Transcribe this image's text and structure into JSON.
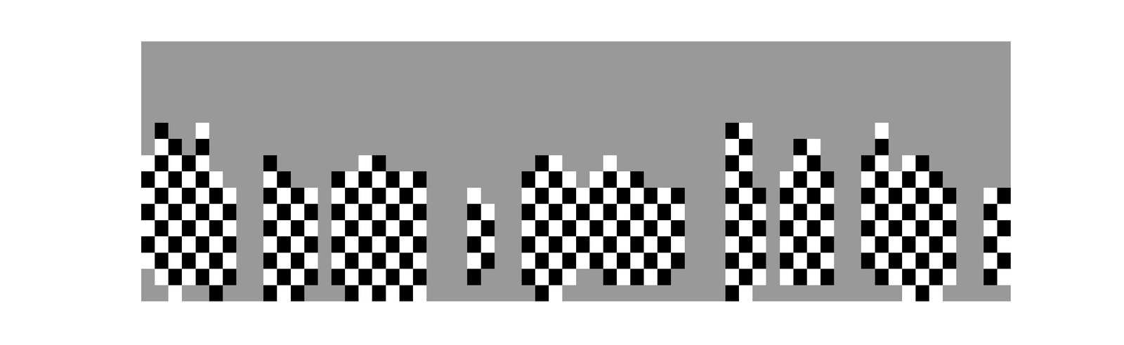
{
  "chart_data": {
    "type": "heatmap",
    "tick_labels": false,
    "grid": false,
    "xlim": [
      -0.5,
      63.5
    ],
    "ylim": [
      -0.5,
      15.5
    ],
    "zlim": [
      -1,
      1
    ],
    "cells": [
      [
        0,
        0,
        1,
        0,
        0,
        -1,
        0,
        0,
        0,
        -1,
        1,
        -1,
        0,
        0,
        0,
        -1,
        1,
        -1,
        1,
        -1,
        1,
        0,
        0,
        0,
        0,
        0,
        0,
        0,
        0,
        -1,
        1,
        0,
        0,
        0,
        0,
        0,
        0,
        0,
        0,
        0,
        0,
        0,
        0,
        -1,
        1,
        0,
        0,
        0,
        0,
        0,
        0,
        0,
        0,
        0,
        0,
        0,
        1,
        -1,
        1,
        0,
        0,
        0,
        0,
        0
      ],
      [
        0,
        1,
        -1,
        1,
        -1,
        1,
        -1,
        0,
        0,
        1,
        -1,
        1,
        -1,
        0,
        -1,
        1,
        -1,
        1,
        -1,
        1,
        -1,
        0,
        0,
        0,
        -1,
        0,
        0,
        0,
        -1,
        1,
        -1,
        1,
        0,
        0,
        -1,
        1,
        -1,
        1,
        -1,
        0,
        0,
        0,
        0,
        1,
        -1,
        1,
        0,
        1,
        -1,
        1,
        -1,
        0,
        0,
        0,
        -1,
        1,
        -1,
        1,
        -1,
        1,
        0,
        0,
        -1,
        1
      ],
      [
        1,
        -1,
        1,
        -1,
        1,
        -1,
        1,
        0,
        0,
        -1,
        1,
        -1,
        1,
        0,
        1,
        -1,
        1,
        -1,
        1,
        -1,
        1,
        0,
        0,
        0,
        1,
        -1,
        0,
        0,
        1,
        -1,
        1,
        -1,
        1,
        -1,
        1,
        -1,
        1,
        -1,
        1,
        -1,
        0,
        0,
        0,
        -1,
        1,
        -1,
        0,
        -1,
        1,
        -1,
        1,
        0,
        0,
        -1,
        1,
        -1,
        1,
        -1,
        1,
        -1,
        0,
        0,
        1,
        -1
      ],
      [
        -1,
        1,
        -1,
        1,
        -1,
        1,
        -1,
        0,
        0,
        1,
        -1,
        1,
        -1,
        0,
        -1,
        1,
        -1,
        1,
        -1,
        1,
        -1,
        0,
        0,
        0,
        -1,
        1,
        0,
        0,
        -1,
        1,
        -1,
        1,
        -1,
        1,
        -1,
        1,
        -1,
        1,
        -1,
        1,
        0,
        0,
        0,
        1,
        -1,
        1,
        0,
        1,
        -1,
        1,
        -1,
        0,
        0,
        1,
        -1,
        1,
        -1,
        1,
        -1,
        1,
        0,
        0,
        -1,
        1
      ],
      [
        1,
        -1,
        1,
        -1,
        1,
        -1,
        1,
        0,
        0,
        -1,
        1,
        -1,
        1,
        0,
        1,
        -1,
        1,
        -1,
        1,
        -1,
        1,
        0,
        0,
        0,
        1,
        -1,
        0,
        0,
        1,
        -1,
        1,
        -1,
        1,
        -1,
        1,
        -1,
        1,
        -1,
        1,
        -1,
        0,
        0,
        0,
        -1,
        1,
        -1,
        0,
        -1,
        1,
        -1,
        1,
        0,
        0,
        -1,
        1,
        -1,
        1,
        -1,
        1,
        -1,
        0,
        0,
        1,
        -1
      ],
      [
        -1,
        1,
        -1,
        1,
        -1,
        1,
        -1,
        0,
        0,
        1,
        -1,
        1,
        -1,
        0,
        -1,
        1,
        -1,
        1,
        -1,
        1,
        -1,
        0,
        0,
        0,
        -1,
        1,
        0,
        0,
        -1,
        1,
        -1,
        1,
        -1,
        1,
        -1,
        1,
        -1,
        1,
        -1,
        1,
        0,
        0,
        0,
        1,
        -1,
        1,
        0,
        1,
        -1,
        1,
        -1,
        0,
        0,
        1,
        -1,
        1,
        -1,
        1,
        -1,
        1,
        0,
        0,
        -1,
        1
      ],
      [
        1,
        -1,
        1,
        -1,
        1,
        -1,
        1,
        0,
        0,
        -1,
        1,
        -1,
        1,
        0,
        1,
        -1,
        1,
        -1,
        1,
        -1,
        1,
        0,
        0,
        0,
        1,
        0,
        0,
        0,
        1,
        -1,
        1,
        -1,
        1,
        -1,
        1,
        -1,
        1,
        -1,
        1,
        -1,
        0,
        0,
        0,
        -1,
        1,
        -1,
        0,
        -1,
        1,
        -1,
        1,
        0,
        0,
        -1,
        1,
        -1,
        1,
        -1,
        1,
        -1,
        0,
        0,
        1,
        -1
      ],
      [
        -1,
        1,
        -1,
        1,
        -1,
        1,
        0,
        0,
        0,
        1,
        -1,
        0,
        0,
        0,
        -1,
        1,
        -1,
        1,
        -1,
        1,
        -1,
        0,
        0,
        0,
        0,
        0,
        0,
        0,
        -1,
        1,
        -1,
        1,
        0,
        1,
        -1,
        1,
        -1,
        0,
        0,
        0,
        0,
        0,
        0,
        1,
        -1,
        0,
        0,
        1,
        -1,
        1,
        -1,
        0,
        0,
        1,
        -1,
        1,
        -1,
        1,
        -1,
        0,
        0,
        0,
        0,
        0
      ],
      [
        1,
        -1,
        1,
        -1,
        1,
        0,
        0,
        0,
        0,
        -1,
        0,
        0,
        0,
        0,
        0,
        0,
        1,
        -1,
        0,
        0,
        0,
        0,
        0,
        0,
        0,
        0,
        0,
        0,
        0,
        -1,
        1,
        0,
        0,
        0,
        1,
        0,
        0,
        0,
        0,
        0,
        0,
        0,
        0,
        -1,
        1,
        0,
        0,
        0,
        1,
        -1,
        0,
        0,
        0,
        -1,
        1,
        0,
        1,
        -1,
        0,
        0,
        0,
        0,
        0,
        0
      ],
      [
        0,
        1,
        -1,
        0,
        -1,
        0,
        0,
        0,
        0,
        0,
        0,
        0,
        0,
        0,
        0,
        0,
        0,
        0,
        0,
        0,
        0,
        0,
        0,
        0,
        0,
        0,
        0,
        0,
        0,
        0,
        0,
        0,
        0,
        0,
        0,
        0,
        0,
        0,
        0,
        0,
        0,
        0,
        0,
        1,
        -1,
        0,
        0,
        0,
        -1,
        1,
        0,
        0,
        0,
        0,
        -1,
        0,
        0,
        0,
        0,
        0,
        0,
        0,
        0,
        0
      ],
      [
        0,
        -1,
        0,
        0,
        1,
        0,
        0,
        0,
        0,
        0,
        0,
        0,
        0,
        0,
        0,
        0,
        0,
        0,
        0,
        0,
        0,
        0,
        0,
        0,
        0,
        0,
        0,
        0,
        0,
        0,
        0,
        0,
        0,
        0,
        0,
        0,
        0,
        0,
        0,
        0,
        0,
        0,
        0,
        -1,
        1,
        0,
        0,
        0,
        0,
        0,
        0,
        0,
        0,
        0,
        1,
        0,
        0,
        0,
        0,
        0,
        0,
        0,
        0,
        0
      ],
      [
        0,
        0,
        0,
        0,
        0,
        0,
        0,
        0,
        0,
        0,
        0,
        0,
        0,
        0,
        0,
        0,
        0,
        0,
        0,
        0,
        0,
        0,
        0,
        0,
        0,
        0,
        0,
        0,
        0,
        0,
        0,
        0,
        0,
        0,
        0,
        0,
        0,
        0,
        0,
        0,
        0,
        0,
        0,
        0,
        0,
        0,
        0,
        0,
        0,
        0,
        0,
        0,
        0,
        0,
        0,
        0,
        0,
        0,
        0,
        0,
        0,
        0,
        0,
        0
      ],
      [
        0,
        0,
        0,
        0,
        0,
        0,
        0,
        0,
        0,
        0,
        0,
        0,
        0,
        0,
        0,
        0,
        0,
        0,
        0,
        0,
        0,
        0,
        0,
        0,
        0,
        0,
        0,
        0,
        0,
        0,
        0,
        0,
        0,
        0,
        0,
        0,
        0,
        0,
        0,
        0,
        0,
        0,
        0,
        0,
        0,
        0,
        0,
        0,
        0,
        0,
        0,
        0,
        0,
        0,
        0,
        0,
        0,
        0,
        0,
        0,
        0,
        0,
        0,
        0
      ],
      [
        0,
        0,
        0,
        0,
        0,
        0,
        0,
        0,
        0,
        0,
        0,
        0,
        0,
        0,
        0,
        0,
        0,
        0,
        0,
        0,
        0,
        0,
        0,
        0,
        0,
        0,
        0,
        0,
        0,
        0,
        0,
        0,
        0,
        0,
        0,
        0,
        0,
        0,
        0,
        0,
        0,
        0,
        0,
        0,
        0,
        0,
        0,
        0,
        0,
        0,
        0,
        0,
        0,
        0,
        0,
        0,
        0,
        0,
        0,
        0,
        0,
        0,
        0,
        0
      ],
      [
        0,
        0,
        0,
        0,
        0,
        0,
        0,
        0,
        0,
        0,
        0,
        0,
        0,
        0,
        0,
        0,
        0,
        0,
        0,
        0,
        0,
        0,
        0,
        0,
        0,
        0,
        0,
        0,
        0,
        0,
        0,
        0,
        0,
        0,
        0,
        0,
        0,
        0,
        0,
        0,
        0,
        0,
        0,
        0,
        0,
        0,
        0,
        0,
        0,
        0,
        0,
        0,
        0,
        0,
        0,
        0,
        0,
        0,
        0,
        0,
        0,
        0,
        0,
        0
      ],
      [
        0,
        0,
        0,
        0,
        0,
        0,
        0,
        0,
        0,
        0,
        0,
        0,
        0,
        0,
        0,
        0,
        0,
        0,
        0,
        0,
        0,
        0,
        0,
        0,
        0,
        0,
        0,
        0,
        0,
        0,
        0,
        0,
        0,
        0,
        0,
        0,
        0,
        0,
        0,
        0,
        0,
        0,
        0,
        0,
        0,
        0,
        0,
        0,
        0,
        0,
        0,
        0,
        0,
        0,
        0,
        0,
        0,
        0,
        0,
        0,
        0,
        0,
        0,
        0
      ]
    ]
  }
}
